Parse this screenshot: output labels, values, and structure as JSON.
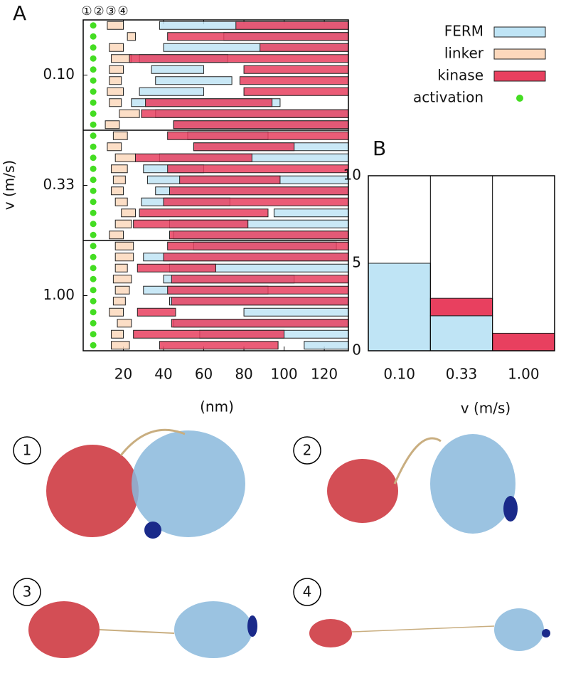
{
  "chart_data": [
    {
      "type": "range",
      "panel": "A",
      "xlabel": "(nm)",
      "ylabel": "v (m/s)",
      "xlim": [
        0,
        132
      ],
      "xticks": [
        20,
        40,
        60,
        80,
        100,
        120
      ],
      "stage_labels": [
        "①",
        "②",
        "③",
        "④"
      ],
      "series": [
        {
          "name": "FERM",
          "color": "#bfe4f5"
        },
        {
          "name": "linker",
          "color": "#fcd8bc"
        },
        {
          "name": "kinase",
          "color": "#e8405f"
        },
        {
          "name": "activation",
          "color": "#44dd22"
        }
      ],
      "groups": [
        {
          "label": "0.10",
          "runs": [
            {
              "FERM": [
                38,
                132
              ],
              "linker": [
                12,
                20
              ],
              "kinase": [
                76,
                132
              ],
              "activation": 5
            },
            {
              "FERM": [
                70,
                132
              ],
              "linker": [
                22,
                26
              ],
              "kinase": [
                42,
                132
              ],
              "activation": 5
            },
            {
              "FERM": [
                40,
                132
              ],
              "linker": [
                13,
                20
              ],
              "kinase": [
                88,
                132
              ],
              "activation": 5
            },
            {
              "FERM": [
                28,
                72
              ],
              "linker": [
                14,
                24
              ],
              "kinase": [
                23,
                132
              ],
              "activation": 5
            },
            {
              "FERM": [
                34,
                60
              ],
              "linker": [
                13,
                20
              ],
              "kinase": [
                80,
                132
              ],
              "activation": 5
            },
            {
              "FERM": [
                36,
                74
              ],
              "linker": [
                13,
                19
              ],
              "kinase": [
                78,
                132
              ],
              "activation": 5
            },
            {
              "FERM": [
                28,
                60
              ],
              "linker": [
                12,
                20
              ],
              "kinase": [
                80,
                132
              ],
              "activation": 5
            },
            {
              "FERM": [
                24,
                98
              ],
              "linker": [
                13,
                19
              ],
              "kinase": [
                31,
                94
              ],
              "activation": 5
            },
            {
              "FERM": [
                36,
                132
              ],
              "linker": [
                18,
                28
              ],
              "kinase": [
                29,
                132
              ],
              "activation": 5
            },
            {
              "FERM": [
                45,
                132
              ],
              "linker": [
                11,
                18
              ],
              "kinase": [
                45,
                132
              ],
              "activation": 5
            }
          ]
        },
        {
          "label": "0.33",
          "runs": [
            {
              "FERM": [
                52,
                92
              ],
              "linker": [
                15,
                22
              ],
              "kinase": [
                42,
                132
              ],
              "activation": 5
            },
            {
              "FERM": [
                55,
                132
              ],
              "linker": [
                12,
                19
              ],
              "kinase": [
                55,
                105
              ],
              "activation": 5
            },
            {
              "FERM": [
                38,
                132
              ],
              "linker": [
                16,
                26
              ],
              "kinase": [
                26,
                84
              ],
              "activation": 5
            },
            {
              "FERM": [
                30,
                60
              ],
              "linker": [
                14,
                22
              ],
              "kinase": [
                42,
                132
              ],
              "activation": 5
            },
            {
              "FERM": [
                32,
                132
              ],
              "linker": [
                15,
                21
              ],
              "kinase": [
                48,
                98
              ],
              "activation": 5
            },
            {
              "FERM": [
                36,
                132
              ],
              "linker": [
                14,
                20
              ],
              "kinase": [
                43,
                132
              ],
              "activation": 5
            },
            {
              "FERM": [
                29,
                73
              ],
              "linker": [
                16,
                22
              ],
              "kinase": [
                40,
                132
              ],
              "activation": 5
            },
            {
              "FERM": [
                95,
                132
              ],
              "linker": [
                19,
                26
              ],
              "kinase": [
                28,
                92
              ],
              "activation": 5
            },
            {
              "FERM": [
                43,
                132
              ],
              "linker": [
                16,
                24
              ],
              "kinase": [
                25,
                82
              ],
              "activation": 5
            },
            {
              "FERM": [
                45,
                132
              ],
              "linker": [
                13,
                20
              ],
              "kinase": [
                43,
                132
              ],
              "activation": 5
            }
          ]
        },
        {
          "label": "1.00",
          "runs": [
            {
              "FERM": [
                55,
                126
              ],
              "linker": [
                16,
                25
              ],
              "kinase": [
                42,
                132
              ],
              "activation": 5
            },
            {
              "FERM": [
                30,
                132
              ],
              "linker": [
                16,
                25
              ],
              "kinase": [
                40,
                132
              ],
              "activation": 5
            },
            {
              "FERM": [
                43,
                132
              ],
              "linker": [
                16,
                22
              ],
              "kinase": [
                27,
                66
              ],
              "activation": 5
            },
            {
              "FERM": [
                40,
                105
              ],
              "linker": [
                15,
                24
              ],
              "kinase": [
                44,
                132
              ],
              "activation": 5
            },
            {
              "FERM": [
                30,
                92
              ],
              "linker": [
                16,
                23
              ],
              "kinase": [
                42,
                132
              ],
              "activation": 5
            },
            {
              "FERM": [
                43,
                132
              ],
              "linker": [
                15,
                21
              ],
              "kinase": [
                44,
                132
              ],
              "activation": 5
            },
            {
              "FERM": [
                80,
                132
              ],
              "linker": [
                13,
                20
              ],
              "kinase": [
                27,
                46
              ],
              "activation": 5
            },
            {
              "FERM": [
                45,
                132
              ],
              "linker": [
                17,
                24
              ],
              "kinase": [
                44,
                132
              ],
              "activation": 5
            },
            {
              "FERM": [
                58,
                132
              ],
              "linker": [
                14,
                20
              ],
              "kinase": [
                25,
                100
              ],
              "activation": 5
            },
            {
              "FERM": [
                110,
                132
              ],
              "linker": [
                14,
                23
              ],
              "kinase": [
                38,
                97
              ],
              "activation": 5
            }
          ]
        }
      ]
    },
    {
      "type": "stacked-bar",
      "panel": "B",
      "xlabel": "v (m/s)",
      "categories": [
        "0.10",
        "0.33",
        "1.00"
      ],
      "ylim": [
        0,
        10
      ],
      "yticks": [
        0,
        5,
        10
      ],
      "series": [
        {
          "name": "FERM",
          "color": "#bfe4f5",
          "values": [
            5,
            2,
            0
          ]
        },
        {
          "name": "kinase",
          "color": "#e8405f",
          "values": [
            0,
            1,
            1
          ]
        }
      ]
    }
  ],
  "snapshots": [
    {
      "label": "1"
    },
    {
      "label": "2"
    },
    {
      "label": "3"
    },
    {
      "label": "4"
    }
  ]
}
